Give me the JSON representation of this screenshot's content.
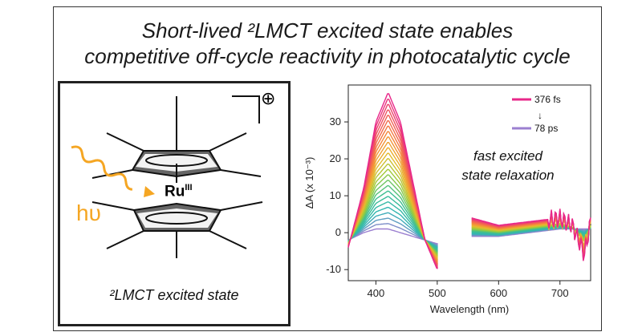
{
  "figure": {
    "title_line1": "Short-lived ²LMCT excited state enables",
    "title_line2": "competitive off-cycle reactivity in photocatalytic cycle"
  },
  "molecule": {
    "metal_label": "Ru",
    "oxidation_state": "III",
    "charge": "⊕",
    "light_label": "hυ",
    "caption": "²LMCT excited state",
    "colors": {
      "wavy_arrow": "#f5a623",
      "light_text": "#f5a623"
    }
  },
  "annotation": {
    "line1": "fast excited",
    "line2": "state relaxation"
  },
  "chart_data": {
    "type": "line",
    "xlabel": "Wavelength (nm)",
    "ylabel": "ΔA (x 10⁻³)",
    "xlim": [
      355,
      750
    ],
    "ylim": [
      -13,
      40
    ],
    "x_ticks": [
      "400",
      "500",
      "600",
      "700"
    ],
    "y_ticks": [
      "-10",
      "0",
      "10",
      "20",
      "30"
    ],
    "gap_nm": [
      502,
      556
    ],
    "legend": {
      "first": "376 fs",
      "last": "78 ps",
      "arrow": "↓",
      "first_color": "#e8288a",
      "last_color": "#9b7fd0"
    },
    "series": [
      {
        "name": "376 fs",
        "color": "#e8288a",
        "x": [
          355,
          380,
          400,
          420,
          440,
          460,
          480,
          500,
          556,
          600,
          650,
          700,
          720,
          740,
          750
        ],
        "y": [
          -4,
          12,
          30,
          38,
          30,
          14,
          -2,
          -10,
          4,
          2,
          3,
          4,
          2,
          -6,
          3
        ]
      },
      {
        "name": "78 ps",
        "color": "#9b7fd0",
        "x": [
          355,
          380,
          400,
          420,
          440,
          460,
          480,
          500,
          556,
          600,
          650,
          700,
          720,
          740,
          750
        ],
        "y": [
          -2,
          0,
          1,
          1,
          0,
          -1,
          -2,
          -3,
          -1,
          -1,
          0,
          1,
          1,
          1,
          1
        ]
      }
    ]
  }
}
